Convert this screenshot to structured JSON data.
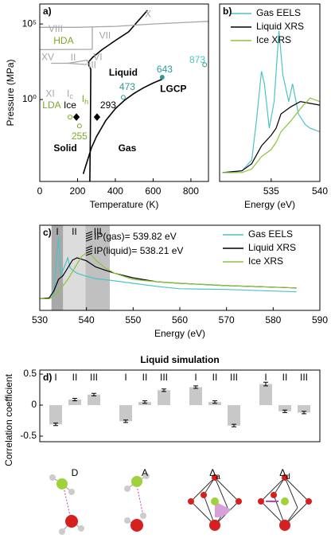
{
  "chart_data": [
    {
      "type": "phase",
      "panel_label": "a)",
      "xlabel": "Temperature (K)",
      "ylabel": "Pressure (MPa)",
      "xlim": [
        0,
        893
      ],
      "ylim": [
        3.8e-06,
        2100000
      ],
      "yscale": "log",
      "xticks": [
        0,
        200,
        400,
        600,
        800
      ],
      "yticks": [
        {
          "value": 1,
          "label": "10⁰"
        },
        {
          "value": 100000,
          "label": "10⁵"
        }
      ],
      "lines": [
        {
          "color": "#000000",
          "x": [
            230,
            250,
            273,
            300,
            350,
            400,
            450,
            500,
            550,
            600,
            647
          ],
          "y": [
            1.2e-05,
            7.6e-05,
            0.00061,
            0.0035,
            0.042,
            0.25,
            0.93,
            2.6,
            6.1,
            12.3,
            22
          ]
        },
        {
          "color": "#000000",
          "x": [
            265,
            268,
            270,
            258,
            262,
            280,
            330,
            400,
            470,
            570
          ],
          "y": [
            3.8e-06,
            0.01,
            100,
            210,
            350,
            620,
            2000,
            8000,
            30000,
            800000
          ]
        },
        {
          "color": "#a6a6a6",
          "x": [
            0,
            200,
            400,
            600,
            800,
            893
          ],
          "y": [
            60000,
            60000,
            70000,
            100000,
            130000,
            150000
          ]
        },
        {
          "color": "#a6a6a6",
          "x": [
            278,
            278
          ],
          "y": [
            2100,
            60000
          ]
        },
        {
          "color": "#a6a6a6",
          "x": [
            0,
            278
          ],
          "y": [
            2000,
            2100
          ]
        },
        {
          "color": "#a6a6a6",
          "x": [
            60,
            150,
            250,
            258
          ],
          "y": [
            250,
            250,
            400,
            200
          ]
        },
        {
          "color": "#a6a6a6",
          "x": [
            150,
            240,
            250
          ],
          "y": [
            250,
            210,
            210
          ]
        }
      ],
      "points": [
        {
          "x": 648,
          "y": 30,
          "color": "#2a9a9a",
          "shape": "circle",
          "filled": true
        },
        {
          "x": 442,
          "y": 1.4,
          "color": "#2a9a9a",
          "shape": "circle",
          "filled": false
        },
        {
          "x": 873,
          "y": 200,
          "color": "#2a9a9a",
          "shape": "circle",
          "filled": false
        },
        {
          "x": 194,
          "y": 0.069,
          "color": "#000000",
          "shape": "diamond",
          "filled": true
        },
        {
          "x": 303,
          "y": 0.069,
          "color": "#000000",
          "shape": "diamond",
          "filled": true
        },
        {
          "x": 160,
          "y": 0.069,
          "color": "#7aa82a",
          "shape": "circle",
          "filled": false
        },
        {
          "x": 210,
          "y": 0.018,
          "color": "#7aa82a",
          "shape": "circle",
          "filled": false
        }
      ],
      "annotations": [
        {
          "text": "X",
          "x": 573,
          "y": 430000,
          "color": "#a6a6a6"
        },
        {
          "text": "VIII",
          "x": 84,
          "y": 43000,
          "color": "#a6a6a6"
        },
        {
          "text": "VII",
          "x": 345,
          "y": 16000,
          "color": "#a6a6a6"
        },
        {
          "text": "HDA",
          "x": 126,
          "y": 7000,
          "color": "#7aa82a"
        },
        {
          "text": "XV",
          "x": 42,
          "y": 600,
          "color": "#a6a6a6"
        },
        {
          "text": "II",
          "x": 177,
          "y": 550,
          "color": "#a6a6a6"
        },
        {
          "text": "VI",
          "x": 307,
          "y": 600,
          "color": "#a6a6a6"
        },
        {
          "text": "III",
          "x": 278,
          "y": 180,
          "color": "#a6a6a6"
        },
        {
          "text": "XI",
          "x": 55,
          "y": 2.3,
          "color": "#a6a6a6"
        },
        {
          "text": "I",
          "sub": "c",
          "x": 160,
          "y": 2.3,
          "color": "#a6a6a6"
        },
        {
          "text": "I",
          "sub": "h",
          "x": 240,
          "y": 1.0,
          "color": "#7aa82a"
        },
        {
          "text": "LDA",
          "x": 63,
          "y": 0.38,
          "color": "#7aa82a"
        },
        {
          "text": "Ice",
          "x": 160,
          "y": 0.38,
          "color": "#000000"
        },
        {
          "text": "293",
          "x": 362,
          "y": 0.38,
          "color": "#000000"
        },
        {
          "text": "255",
          "x": 210,
          "y": 0.0034,
          "color": "#7aa82a"
        },
        {
          "text": "Liquid",
          "x": 442,
          "y": 55,
          "color": "#000000",
          "weight": "bold"
        },
        {
          "text": "LGCP",
          "x": 707,
          "y": 4.8,
          "color": "#000000",
          "weight": "bold"
        },
        {
          "text": "643",
          "x": 661,
          "y": 89,
          "color": "#2a9a9a"
        },
        {
          "text": "473",
          "x": 463,
          "y": 6.2,
          "color": "#2a9a9a"
        },
        {
          "text": "873",
          "x": 834,
          "y": 400,
          "color": "#4cc4c4"
        },
        {
          "text": "Solid",
          "x": 135,
          "y": 0.00055,
          "color": "#000000",
          "weight": "bold"
        },
        {
          "text": "Gas",
          "x": 463,
          "y": 0.00055,
          "color": "#000000",
          "weight": "bold"
        }
      ]
    },
    {
      "type": "line",
      "panel_label": "b)",
      "xlabel": "Energy (eV)",
      "xlim": [
        529.7,
        540
      ],
      "ylim": [
        0,
        1
      ],
      "xticks": [
        535,
        540
      ],
      "legend": "upper right",
      "series": [
        {
          "name": "Gas EELS",
          "color": "#4cc4c4",
          "x": [
            530,
            531,
            532,
            533,
            533.5,
            534,
            534.3,
            534.8,
            535.3,
            535.8,
            536.2,
            536.8,
            537.2,
            537.8,
            538.5,
            539,
            540
          ],
          "values": [
            0.05,
            0.05,
            0.06,
            0.12,
            0.35,
            0.62,
            0.55,
            0.3,
            0.45,
            0.85,
            0.6,
            0.45,
            0.55,
            0.38,
            0.32,
            0.3,
            0.28
          ]
        },
        {
          "name": "Liquid XRS",
          "color": "#000000",
          "x": [
            530,
            532,
            533,
            534,
            535,
            535.5,
            536,
            537,
            538,
            539,
            540
          ],
          "values": [
            0.05,
            0.06,
            0.1,
            0.2,
            0.26,
            0.3,
            0.38,
            0.42,
            0.45,
            0.44,
            0.43
          ]
        },
        {
          "name": "Ice XRS",
          "color": "#8cc43c",
          "x": [
            530,
            532,
            533,
            534,
            535,
            535.5,
            536,
            537,
            538,
            539,
            540
          ],
          "values": [
            0.05,
            0.05,
            0.07,
            0.14,
            0.18,
            0.22,
            0.28,
            0.34,
            0.41,
            0.47,
            0.45
          ]
        }
      ]
    },
    {
      "type": "line",
      "panel_label": "c)",
      "xlabel": "Energy (eV)",
      "xlim": [
        530,
        590
      ],
      "ylim": [
        -0.1,
        1
      ],
      "xticks": [
        530,
        540,
        550,
        560,
        570,
        580,
        590
      ],
      "legend": "upper right",
      "regions": [
        {
          "label": "I",
          "range": [
            532.5,
            535
          ],
          "color": "#a8a8a8"
        },
        {
          "label": "II",
          "range": [
            535,
            539.8
          ],
          "color": "#dcdcdc"
        },
        {
          "label": "III",
          "range": [
            539.8,
            545
          ],
          "color": "#c0c0c0"
        }
      ],
      "notes": [
        "IP(gas)= 539.82 eV",
        "IP(liquid)= 538.21 eV"
      ],
      "series": [
        {
          "name": "Gas EELS",
          "color": "#4cc4c4",
          "x": [
            530,
            532,
            533,
            533.5,
            534,
            534.5,
            535,
            535.5,
            536,
            536.5,
            537,
            538,
            539,
            540,
            542,
            545,
            550,
            555,
            560,
            570,
            580,
            585
          ],
          "values": [
            0.05,
            0.05,
            0.1,
            0.5,
            0.85,
            0.35,
            0.42,
            0.5,
            0.58,
            0.45,
            0.42,
            0.38,
            0.36,
            0.34,
            0.31,
            0.29,
            0.25,
            0.21,
            0.18,
            0.17,
            0.15,
            0.14
          ]
        },
        {
          "name": "Liquid XRS",
          "color": "#000000",
          "x": [
            530,
            532,
            533,
            534,
            535,
            536,
            537,
            538,
            539,
            540,
            541,
            542,
            544,
            546,
            550,
            555,
            560,
            570,
            580,
            585
          ],
          "values": [
            0.05,
            0.06,
            0.15,
            0.3,
            0.35,
            0.45,
            0.55,
            0.58,
            0.56,
            0.54,
            0.5,
            0.46,
            0.42,
            0.38,
            0.32,
            0.27,
            0.25,
            0.22,
            0.2,
            0.19
          ]
        },
        {
          "name": "Ice XRS",
          "color": "#8cc43c",
          "x": [
            530,
            532,
            533,
            534,
            535,
            536,
            537,
            538,
            539,
            540,
            541,
            542,
            544,
            546,
            550,
            555,
            560,
            570,
            580,
            585
          ],
          "values": [
            0.05,
            0.05,
            0.08,
            0.15,
            0.22,
            0.3,
            0.4,
            0.5,
            0.6,
            0.64,
            0.62,
            0.55,
            0.45,
            0.38,
            0.3,
            0.27,
            0.25,
            0.22,
            0.2,
            0.19
          ]
        }
      ]
    },
    {
      "type": "bar",
      "panel_label": "d)",
      "title": "Liquid simulation",
      "ylabel": "Correlation coefficient",
      "categories": [
        "D",
        "A",
        "Δ",
        "Δ"
      ],
      "category_subscripts": [
        null,
        null,
        "a",
        "d"
      ],
      "ylim": [
        -0.59,
        0.565
      ],
      "yticks": [
        -0.5,
        0,
        0.5
      ],
      "series": [
        {
          "name": "I",
          "color": "#c8c8c8",
          "values": [
            -0.31,
            -0.26,
            0.29,
            0.34
          ],
          "errors": [
            0.02,
            0.02,
            0.02,
            0.03
          ]
        },
        {
          "name": "II",
          "color": "#c8c8c8",
          "values": [
            0.09,
            0.05,
            0.05,
            -0.1
          ],
          "errors": [
            0.02,
            0.02,
            0.02,
            0.02
          ]
        },
        {
          "name": "III",
          "color": "#c8c8c8",
          "values": [
            0.17,
            0.24,
            -0.33,
            -0.12
          ],
          "errors": [
            0.02,
            0.02,
            0.02,
            0.02
          ]
        }
      ]
    }
  ]
}
